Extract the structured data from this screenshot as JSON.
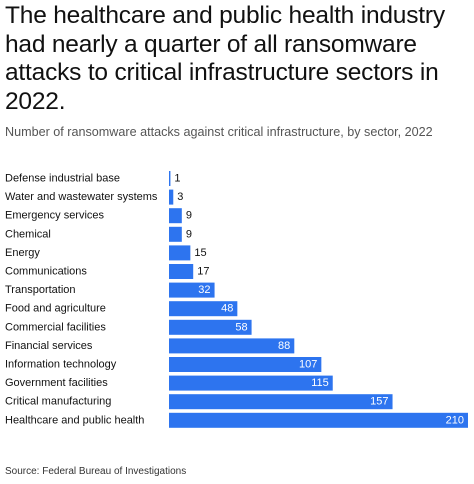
{
  "header": {
    "title": "The healthcare and public health industry had nearly a quarter of all ransomware attacks to critical infrastructure sectors in 2022.",
    "subtitle": "Number of ransomware attacks against critical infrastructure, by sector, 2022"
  },
  "footer": {
    "source": "Source: Federal Bureau of Investigations"
  },
  "colors": {
    "bar": "#2d74ef",
    "label_inside": "#ffffff",
    "label_outside": "#111111"
  },
  "chart_data": {
    "type": "bar",
    "orientation": "horizontal",
    "title": "Number of ransomware attacks against critical infrastructure, by sector, 2022",
    "xlabel": "",
    "ylabel": "",
    "grid": false,
    "legend": "none",
    "xlim": [
      0,
      210
    ],
    "categories": [
      "Defense industrial base",
      "Water and wastewater systems",
      "Emergency services",
      "Chemical",
      "Energy",
      "Communications",
      "Transportation",
      "Food and agriculture",
      "Commercial facilities",
      "Financial services",
      "Information technology",
      "Government facilities",
      "Critical manufacturing",
      "Healthcare and public health"
    ],
    "values": [
      1,
      3,
      9,
      9,
      15,
      17,
      32,
      48,
      58,
      88,
      107,
      115,
      157,
      210
    ]
  }
}
